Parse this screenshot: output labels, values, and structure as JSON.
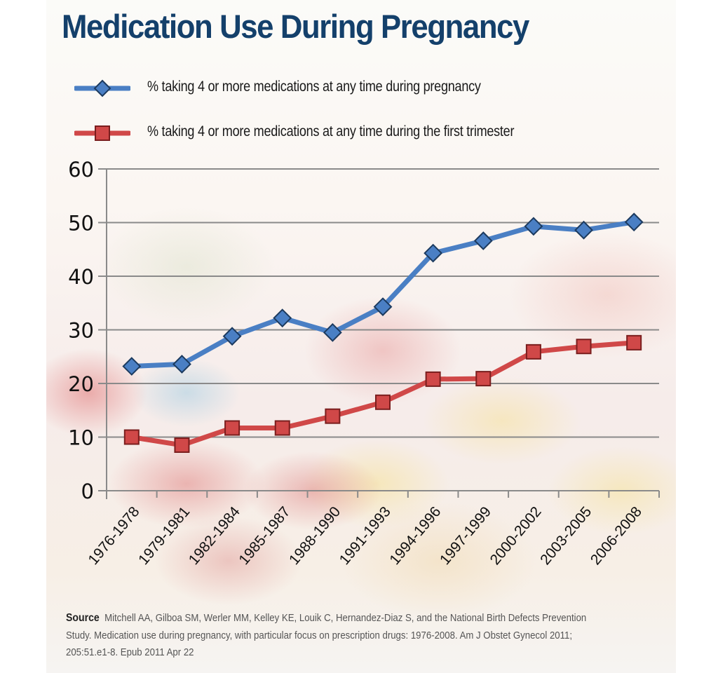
{
  "chart_data": {
    "type": "line",
    "title": "Medication Use During Pregnancy",
    "xlabel": "",
    "ylabel": "",
    "ylim": [
      0,
      60
    ],
    "yticks": [
      0,
      10,
      20,
      30,
      40,
      50,
      60
    ],
    "grid": true,
    "legend_position": "top",
    "categories": [
      "1976-1978",
      "1979-1981",
      "1982-1984",
      "1985-1987",
      "1988-1990",
      "1991-1993",
      "1994-1996",
      "1997-1999",
      "2000-2002",
      "2003-2005",
      "2006-2008"
    ],
    "series": [
      {
        "name": "% taking 4 or more medications at any time during pregnancy",
        "marker": "diamond",
        "color": "#4a7fc4",
        "values": [
          23.2,
          23.6,
          28.8,
          32.2,
          29.5,
          34.3,
          44.3,
          46.6,
          49.3,
          48.6,
          50.1
        ]
      },
      {
        "name": "% taking 4 or more medications at any time during the first trimester",
        "marker": "square",
        "color": "#d04848",
        "values": [
          10.0,
          8.5,
          11.7,
          11.7,
          13.9,
          16.5,
          20.8,
          20.9,
          25.9,
          26.9,
          27.6
        ]
      }
    ]
  },
  "source": {
    "label": "Source",
    "text": "Mitchell AA, Gilboa SM, Werler MM, Kelley KE, Louik C, Hernandez-Diaz S, and the National Birth Defects Prevention",
    "line2": "Study. Medication use during pregnancy, with particular focus on prescription drugs: 1976-2008. Am J Obstet Gynecol 2011;",
    "line3": "205:51.e1-8. Epub 2011 Apr 22"
  },
  "colors": {
    "title": "#14406b",
    "blue_line": "#4a7fc4",
    "blue_edge": "#1c3a5e",
    "red_line": "#d04848",
    "red_edge": "#7a1e1e",
    "grid": "#8a8a8a"
  }
}
